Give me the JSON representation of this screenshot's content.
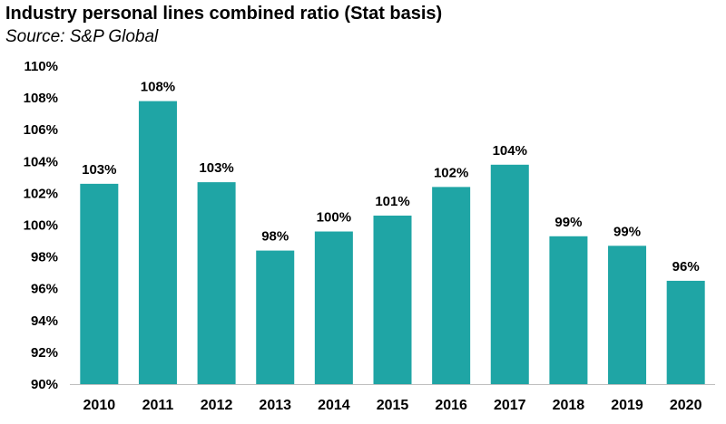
{
  "chart_data": {
    "type": "bar",
    "title": "Industry personal lines combined ratio (Stat basis)",
    "subtitle": "Source: S&P Global",
    "categories": [
      "2010",
      "2011",
      "2012",
      "2013",
      "2014",
      "2015",
      "2016",
      "2017",
      "2018",
      "2019",
      "2020"
    ],
    "values": [
      102.6,
      107.8,
      102.7,
      98.4,
      99.6,
      100.6,
      102.4,
      103.8,
      99.3,
      98.7,
      96.5
    ],
    "data_labels": [
      "103%",
      "108%",
      "103%",
      "98%",
      "100%",
      "101%",
      "102%",
      "104%",
      "99%",
      "99%",
      "96%"
    ],
    "ylim": [
      90,
      110
    ],
    "yticks": [
      90,
      92,
      94,
      96,
      98,
      100,
      102,
      104,
      106,
      108,
      110
    ],
    "ytick_labels": [
      "90%",
      "92%",
      "94%",
      "96%",
      "98%",
      "100%",
      "102%",
      "104%",
      "106%",
      "108%",
      "110%"
    ],
    "bar_color": "#1fa5a5",
    "grid": false,
    "legend": "none"
  }
}
